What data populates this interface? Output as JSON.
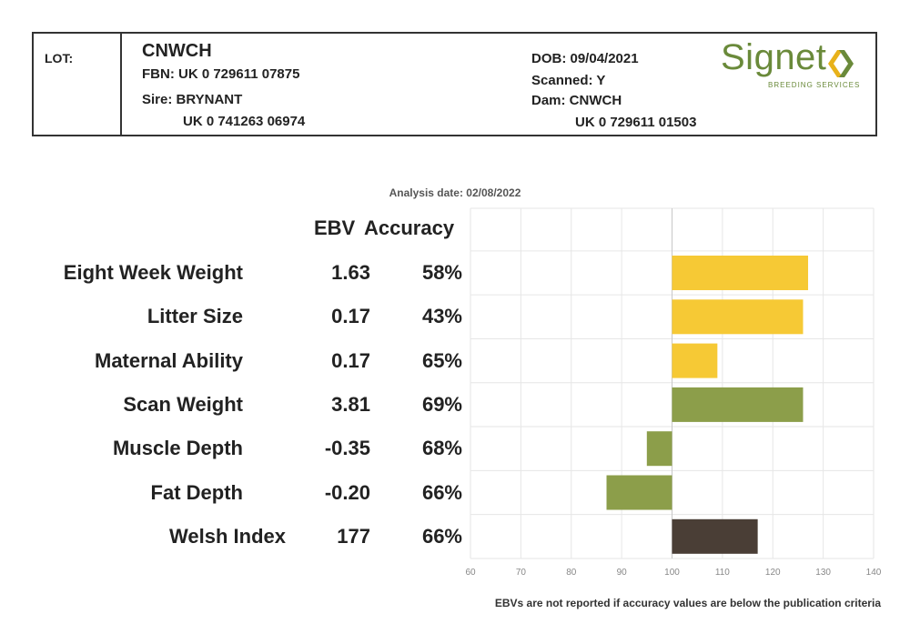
{
  "header": {
    "lot_label": "LOT:",
    "dam_name": "CNWCH",
    "fbn": "FBN: UK 0 729611 07875",
    "sire": "Sire: BRYNANT",
    "sire_id": "UK 0 741263 06974",
    "dob": "DOB: 09/04/2021",
    "scanned": "Scanned: Y",
    "dam": "Dam: CNWCH",
    "dam_id": "UK 0 729611 01503",
    "logo_word": "Signet",
    "logo_sub": "BREEDING SERVICES"
  },
  "analysis_date": "Analysis date: 02/08/2022",
  "columns": {
    "ebv": "EBV",
    "accuracy": "Accuracy"
  },
  "footnote": "EBVs are not reported if accuracy values are below the publication criteria",
  "colors": {
    "growth": "#f6c935",
    "carcass": "#8c9e4a",
    "index": "#4a3e36",
    "grid": "#e6e6e6",
    "baseline": "#c8c8c8"
  },
  "chart_data": {
    "type": "bar",
    "orientation": "horizontal",
    "baseline": 100,
    "xlim": [
      60,
      140
    ],
    "xticks": [
      "60",
      "70",
      "80",
      "90",
      "100",
      "110",
      "120",
      "130",
      "140"
    ],
    "grid": true,
    "categories": [
      "Eight Week Weight",
      "Litter Size",
      "Maternal Ability",
      "Scan Weight",
      "Muscle Depth",
      "Fat Depth",
      "Welsh Index"
    ],
    "ebv": [
      "1.63",
      "0.17",
      "0.17",
      "3.81",
      "-0.35",
      "-0.20",
      "177"
    ],
    "accuracy": [
      "58%",
      "43%",
      "65%",
      "69%",
      "68%",
      "66%",
      "66%"
    ],
    "values": [
      127,
      126,
      109,
      126,
      95,
      87,
      117
    ],
    "color_groups": [
      "growth",
      "growth",
      "growth",
      "carcass",
      "carcass",
      "carcass",
      "index"
    ]
  }
}
